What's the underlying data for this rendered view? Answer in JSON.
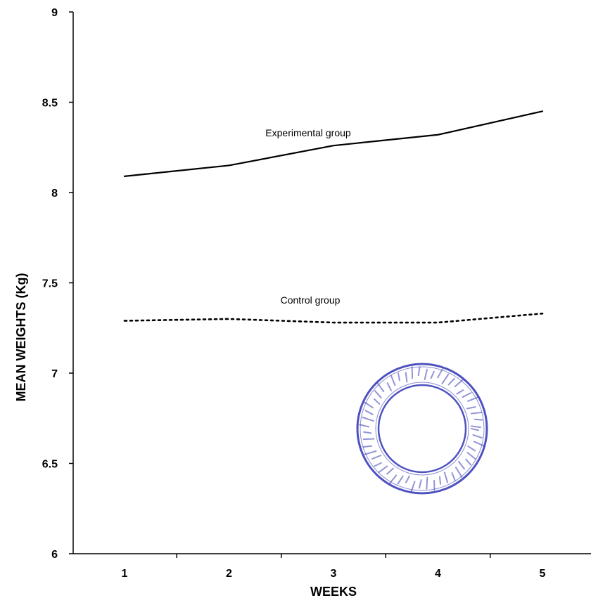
{
  "chart_data": {
    "type": "line",
    "title": "",
    "xlabel": "WEEKS",
    "ylabel": "MEAN WEIGHTS (Kg)",
    "xlim": [
      0.5,
      5.5
    ],
    "ylim": [
      6,
      9
    ],
    "x": [
      1,
      2,
      3,
      4,
      5
    ],
    "x_ticks": [
      "1",
      "2",
      "3",
      "4",
      "5"
    ],
    "y_ticks": [
      "6",
      "6.5",
      "7",
      "7.5",
      "8",
      "8.5",
      "9"
    ],
    "grid": false,
    "legend": "none",
    "series": [
      {
        "name": "Experimental group",
        "values": [
          8.09,
          8.15,
          8.26,
          8.32,
          8.45
        ],
        "style": "solid",
        "color": "#000000"
      },
      {
        "name": "Control group",
        "values": [
          7.29,
          7.3,
          7.28,
          7.28,
          7.33
        ],
        "style": "dotted",
        "color": "#000000"
      }
    ]
  },
  "stamp": {
    "color": "#3b3fb8"
  }
}
